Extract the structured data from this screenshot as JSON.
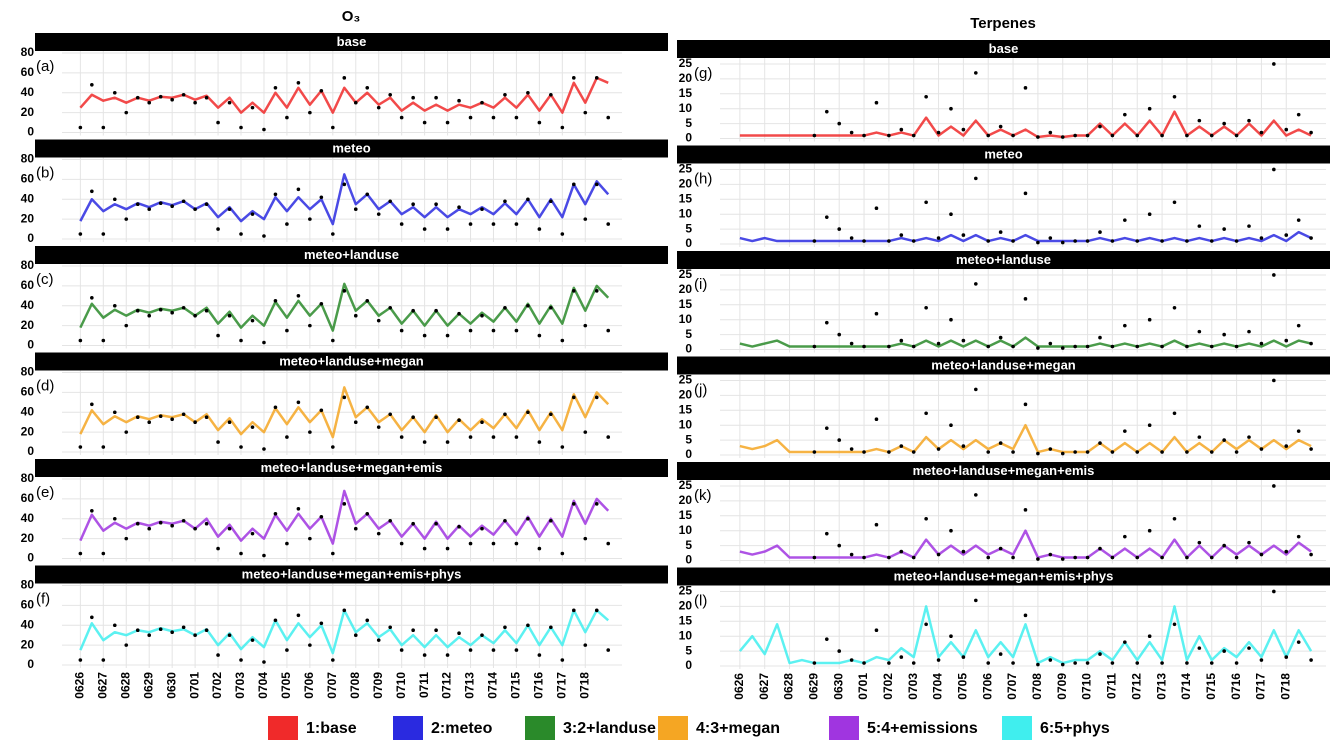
{
  "chart_data": [
    {
      "type": "line",
      "title": "O₃",
      "x": [
        0,
        0.5,
        1,
        1.5,
        2,
        2.5,
        3,
        3.5,
        4,
        4.5,
        5,
        5.5,
        6,
        6.5,
        7,
        7.5,
        8,
        8.5,
        9,
        9.5,
        10,
        10.5,
        11,
        11.5,
        12,
        12.5,
        13,
        13.5,
        14,
        14.5,
        15,
        15.5,
        16,
        16.5,
        17,
        17.5,
        18,
        18.5,
        19,
        19.5,
        20,
        20.5,
        21,
        21.5,
        22,
        22.5,
        23
      ],
      "xlim": [
        -0.8,
        23.6
      ],
      "xticks": [
        {
          "value": 0,
          "label": "0626"
        },
        {
          "value": 1,
          "label": "0627"
        },
        {
          "value": 2,
          "label": "0628"
        },
        {
          "value": 3,
          "label": "0629"
        },
        {
          "value": 4,
          "label": "0630"
        },
        {
          "value": 5,
          "label": "0701"
        },
        {
          "value": 6,
          "label": "0702"
        },
        {
          "value": 7,
          "label": "0703"
        },
        {
          "value": 8,
          "label": "0704"
        },
        {
          "value": 9,
          "label": "0705"
        },
        {
          "value": 10,
          "label": "0706"
        },
        {
          "value": 11,
          "label": "0707"
        },
        {
          "value": 12,
          "label": "0708"
        },
        {
          "value": 13,
          "label": "0709"
        },
        {
          "value": 14,
          "label": "0710"
        },
        {
          "value": 15,
          "label": "0711"
        },
        {
          "value": 16,
          "label": "0712"
        },
        {
          "value": 17,
          "label": "0713"
        },
        {
          "value": 18,
          "label": "0714"
        },
        {
          "value": 19,
          "label": "0715"
        },
        {
          "value": 20,
          "label": "0716"
        },
        {
          "value": 21,
          "label": "0717"
        },
        {
          "value": 22,
          "label": "0718"
        }
      ],
      "ylim": [
        -3,
        82
      ],
      "yticks": [
        0,
        20,
        40,
        60,
        80
      ],
      "grid": true,
      "observed": [
        5,
        48,
        5,
        40,
        20,
        35,
        30,
        36,
        33,
        38,
        30,
        35,
        10,
        30,
        5,
        25,
        3,
        45,
        15,
        50,
        20,
        42,
        5,
        55,
        30,
        45,
        25,
        38,
        15,
        35,
        10,
        35,
        10,
        32,
        15,
        30,
        15,
        38,
        15,
        40,
        10,
        38,
        5,
        55,
        20,
        55,
        15
      ],
      "panels": [
        {
          "title": "base",
          "label": "(a)",
          "values": [
            25,
            38,
            32,
            35,
            30,
            35,
            32,
            36,
            35,
            38,
            33,
            37,
            25,
            35,
            20,
            30,
            20,
            40,
            25,
            45,
            28,
            42,
            20,
            45,
            30,
            40,
            28,
            35,
            22,
            30,
            22,
            28,
            22,
            28,
            25,
            30,
            25,
            35,
            25,
            38,
            22,
            38,
            20,
            50,
            30,
            55,
            50
          ]
        },
        {
          "title": "meteo",
          "label": "(b)",
          "values": [
            18,
            40,
            28,
            35,
            30,
            36,
            32,
            37,
            34,
            38,
            30,
            36,
            22,
            32,
            18,
            28,
            20,
            42,
            28,
            42,
            30,
            40,
            15,
            65,
            35,
            45,
            30,
            38,
            25,
            32,
            22,
            32,
            22,
            30,
            25,
            32,
            25,
            36,
            25,
            40,
            22,
            40,
            22,
            55,
            35,
            58,
            45
          ]
        },
        {
          "title": "meteo+landuse",
          "label": "(c)",
          "values": [
            18,
            42,
            28,
            36,
            30,
            36,
            33,
            37,
            35,
            38,
            30,
            38,
            22,
            34,
            18,
            30,
            20,
            44,
            28,
            45,
            30,
            42,
            15,
            62,
            35,
            45,
            30,
            38,
            22,
            35,
            20,
            35,
            20,
            32,
            22,
            33,
            24,
            38,
            24,
            42,
            22,
            40,
            22,
            58,
            35,
            60,
            48
          ]
        },
        {
          "title": "meteo+landuse+megan",
          "label": "(d)",
          "values": [
            18,
            42,
            28,
            36,
            30,
            36,
            33,
            37,
            35,
            38,
            30,
            38,
            22,
            34,
            18,
            30,
            20,
            44,
            28,
            45,
            30,
            42,
            15,
            65,
            35,
            45,
            30,
            38,
            22,
            35,
            20,
            37,
            20,
            33,
            22,
            33,
            24,
            38,
            24,
            42,
            22,
            40,
            22,
            58,
            35,
            60,
            48
          ]
        },
        {
          "title": "meteo+landuse+megan+emis",
          "label": "(e)",
          "values": [
            18,
            44,
            28,
            36,
            30,
            36,
            33,
            37,
            35,
            38,
            30,
            40,
            22,
            34,
            18,
            30,
            20,
            44,
            28,
            45,
            30,
            42,
            15,
            68,
            35,
            45,
            30,
            38,
            22,
            35,
            20,
            37,
            20,
            33,
            22,
            33,
            24,
            38,
            24,
            42,
            22,
            40,
            22,
            58,
            35,
            60,
            48
          ]
        },
        {
          "title": "meteo+landuse+megan+emis+phys",
          "label": "(f)",
          "values": [
            15,
            42,
            25,
            33,
            30,
            35,
            33,
            37,
            34,
            36,
            30,
            36,
            20,
            32,
            16,
            28,
            18,
            45,
            25,
            42,
            28,
            40,
            12,
            55,
            33,
            42,
            28,
            36,
            20,
            30,
            18,
            30,
            18,
            28,
            20,
            30,
            22,
            35,
            22,
            40,
            20,
            38,
            20,
            55,
            33,
            55,
            45
          ]
        }
      ]
    },
    {
      "type": "line",
      "title": "Terpenes",
      "x": [
        0,
        0.5,
        1,
        1.5,
        2,
        2.5,
        3,
        3.5,
        4,
        4.5,
        5,
        5.5,
        6,
        6.5,
        7,
        7.5,
        8,
        8.5,
        9,
        9.5,
        10,
        10.5,
        11,
        11.5,
        12,
        12.5,
        13,
        13.5,
        14,
        14.5,
        15,
        15.5,
        16,
        16.5,
        17,
        17.5,
        18,
        18.5,
        19,
        19.5,
        20,
        20.5,
        21,
        21.5,
        22,
        22.5,
        23
      ],
      "xlim": [
        -0.8,
        23.6
      ],
      "xticks": [
        {
          "value": 0,
          "label": "0626"
        },
        {
          "value": 1,
          "label": "0627"
        },
        {
          "value": 2,
          "label": "0628"
        },
        {
          "value": 3,
          "label": "0629"
        },
        {
          "value": 4,
          "label": "0630"
        },
        {
          "value": 5,
          "label": "0701"
        },
        {
          "value": 6,
          "label": "0702"
        },
        {
          "value": 7,
          "label": "0703"
        },
        {
          "value": 8,
          "label": "0704"
        },
        {
          "value": 9,
          "label": "0705"
        },
        {
          "value": 10,
          "label": "0706"
        },
        {
          "value": 11,
          "label": "0707"
        },
        {
          "value": 12,
          "label": "0708"
        },
        {
          "value": 13,
          "label": "0709"
        },
        {
          "value": 14,
          "label": "0710"
        },
        {
          "value": 15,
          "label": "0711"
        },
        {
          "value": 16,
          "label": "0712"
        },
        {
          "value": 17,
          "label": "0713"
        },
        {
          "value": 18,
          "label": "0714"
        },
        {
          "value": 19,
          "label": "0715"
        },
        {
          "value": 20,
          "label": "0716"
        },
        {
          "value": 21,
          "label": "0717"
        },
        {
          "value": 22,
          "label": "0718"
        }
      ],
      "ylim": [
        -1,
        27
      ],
      "yticks": [
        0,
        5,
        10,
        15,
        20,
        25
      ],
      "grid": true,
      "observed": [
        null,
        null,
        null,
        null,
        null,
        null,
        1,
        9,
        5,
        2,
        1,
        12,
        1,
        3,
        1,
        14,
        2,
        10,
        3,
        22,
        1,
        4,
        1,
        17,
        0.5,
        2,
        0.5,
        1,
        1,
        4,
        1,
        8,
        1,
        10,
        1,
        14,
        1,
        6,
        1,
        5,
        1,
        6,
        2,
        25,
        3,
        8,
        2
      ],
      "panels": [
        {
          "title": "base",
          "label": "(g)",
          "values": [
            1,
            1,
            1,
            1,
            1,
            1,
            1,
            1,
            1,
            1,
            1,
            2,
            1,
            2,
            1,
            7,
            1,
            4,
            1,
            6,
            1,
            3,
            1,
            3,
            0.5,
            1,
            0.5,
            1,
            1,
            5,
            1,
            5,
            1,
            6,
            1,
            9,
            1,
            4,
            1,
            4,
            1,
            5,
            1,
            6,
            1,
            3,
            1
          ]
        },
        {
          "title": "meteo",
          "label": "(h)",
          "values": [
            2,
            1,
            2,
            1,
            1,
            1,
            1,
            1,
            1,
            1,
            1,
            1,
            1,
            2,
            1,
            2,
            1,
            3,
            1,
            3,
            1,
            2,
            1,
            3,
            1,
            1,
            1,
            1,
            1,
            2,
            1,
            2,
            1,
            2,
            1,
            2,
            1,
            2,
            1,
            2,
            1,
            2,
            1,
            3,
            1,
            4,
            2
          ]
        },
        {
          "title": "meteo+landuse",
          "label": "(i)",
          "values": [
            2,
            1,
            2,
            3,
            1,
            1,
            1,
            1,
            1,
            1,
            1,
            1,
            1,
            2,
            1,
            3,
            1,
            3,
            1,
            3,
            1,
            3,
            1,
            4,
            1,
            1,
            1,
            1,
            1,
            2,
            1,
            2,
            1,
            2,
            1,
            3,
            1,
            2,
            1,
            2,
            1,
            2,
            1,
            3,
            1,
            3,
            2
          ]
        },
        {
          "title": "meteo+landuse+megan",
          "label": "(j)",
          "values": [
            3,
            2,
            3,
            5,
            1,
            1,
            1,
            1,
            1,
            1,
            1,
            2,
            1,
            3,
            1,
            6,
            2,
            5,
            2,
            5,
            2,
            4,
            2,
            10,
            1,
            2,
            1,
            1,
            1,
            4,
            1,
            4,
            1,
            4,
            1,
            6,
            1,
            4,
            1,
            5,
            2,
            5,
            2,
            5,
            2,
            5,
            3
          ]
        },
        {
          "title": "meteo+landuse+megan+emis",
          "label": "(k)",
          "values": [
            3,
            2,
            3,
            5,
            1,
            1,
            1,
            1,
            1,
            1,
            1,
            2,
            1,
            3,
            1,
            7,
            2,
            5,
            2,
            5,
            2,
            4,
            2,
            10,
            1,
            2,
            1,
            1,
            1,
            4,
            1,
            4,
            1,
            4,
            1,
            7,
            1,
            5,
            1,
            5,
            2,
            5,
            2,
            5,
            2,
            6,
            3
          ]
        },
        {
          "title": "meteo+landuse+megan+emis+phys",
          "label": "(l)",
          "values": [
            5,
            10,
            4,
            14,
            1,
            2,
            1,
            1,
            1,
            2,
            1,
            3,
            2,
            6,
            3,
            20,
            3,
            8,
            3,
            12,
            3,
            8,
            3,
            14,
            1,
            3,
            1,
            2,
            2,
            5,
            2,
            8,
            2,
            8,
            2,
            20,
            2,
            10,
            2,
            6,
            3,
            8,
            3,
            12,
            3,
            12,
            5
          ]
        }
      ]
    }
  ],
  "legend": [
    {
      "name": "1:base",
      "color": "#f02a2a"
    },
    {
      "name": "2:meteo",
      "color": "#2a2ae0"
    },
    {
      "name": "3:2+landuse",
      "color": "#2a8a2a"
    },
    {
      "name": "4:3+megan",
      "color": "#f5a623"
    },
    {
      "name": "5:4+emissions",
      "color": "#a035e0"
    },
    {
      "name": "6:5+phys",
      "color": "#40eeee"
    }
  ]
}
